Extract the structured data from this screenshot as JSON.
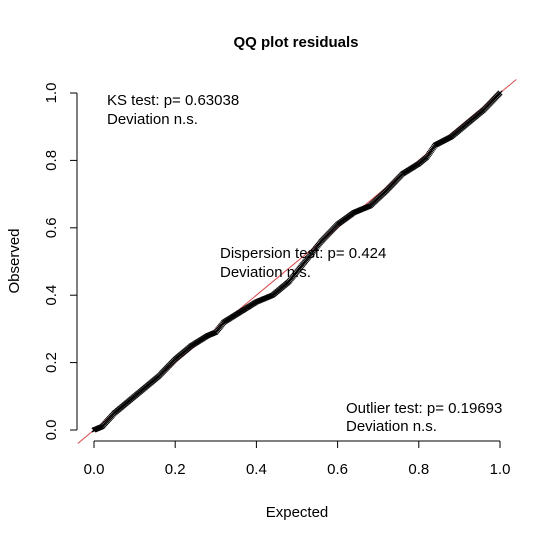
{
  "chart_data": {
    "type": "scatter",
    "title": "QQ plot residuals",
    "xlabel": "Expected",
    "ylabel": "Observed",
    "xlim": [
      0,
      1
    ],
    "ylim": [
      0,
      1
    ],
    "xticks": [
      "0.0",
      "0.2",
      "0.4",
      "0.6",
      "0.8",
      "1.0"
    ],
    "yticks": [
      "0.0",
      "0.2",
      "0.4",
      "0.6",
      "0.8",
      "1.0"
    ],
    "reference_line": {
      "slope": 1,
      "intercept": 0,
      "color": "#d9484a"
    },
    "point_color": "#000000",
    "series": [
      {
        "x": [
          0.0,
          0.02,
          0.05,
          0.08,
          0.12,
          0.16,
          0.2,
          0.24,
          0.28,
          0.3,
          0.32,
          0.36,
          0.4,
          0.44,
          0.48,
          0.52,
          0.56,
          0.6,
          0.64,
          0.68,
          0.72,
          0.76,
          0.8,
          0.82,
          0.84,
          0.88,
          0.92,
          0.96,
          1.0
        ],
        "y": [
          0.0,
          0.01,
          0.05,
          0.08,
          0.12,
          0.16,
          0.21,
          0.25,
          0.28,
          0.29,
          0.32,
          0.35,
          0.38,
          0.4,
          0.44,
          0.5,
          0.56,
          0.61,
          0.645,
          0.665,
          0.71,
          0.76,
          0.79,
          0.81,
          0.845,
          0.87,
          0.91,
          0.95,
          1.0
        ]
      }
    ],
    "annotations": [
      {
        "line1": "KS test: p= 0.63038",
        "line2": "Deviation  n.s."
      },
      {
        "line1": "Dispersion test: p= 0.424",
        "line2": "Deviation  n.s."
      },
      {
        "line1": "Outlier test: p= 0.19693",
        "line2": "Deviation  n.s."
      }
    ]
  }
}
